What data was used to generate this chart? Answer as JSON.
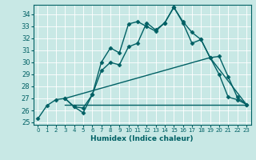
{
  "xlabel": "Humidex (Indice chaleur)",
  "bg_color": "#c8e8e5",
  "grid_color": "#ffffff",
  "line_color": "#006064",
  "xlim": [
    -0.5,
    23.5
  ],
  "ylim": [
    24.8,
    34.8
  ],
  "yticks": [
    25,
    26,
    27,
    28,
    29,
    30,
    31,
    32,
    33,
    34
  ],
  "xticks": [
    0,
    1,
    2,
    3,
    4,
    5,
    6,
    7,
    8,
    9,
    10,
    11,
    12,
    13,
    14,
    15,
    16,
    17,
    18,
    19,
    20,
    21,
    22,
    23
  ],
  "series": [
    {
      "x": [
        0,
        1,
        2,
        3,
        4,
        5,
        6,
        7,
        8,
        9,
        10,
        11,
        12,
        13,
        14,
        15,
        16,
        17,
        18,
        19,
        20,
        21,
        22,
        23
      ],
      "y": [
        25.3,
        26.4,
        26.9,
        27.0,
        26.3,
        25.8,
        27.3,
        30.0,
        31.2,
        30.8,
        33.2,
        33.4,
        33.0,
        32.6,
        33.3,
        34.6,
        33.4,
        32.5,
        31.9,
        30.4,
        29.0,
        27.1,
        26.9,
        26.5
      ],
      "marker": "D",
      "markersize": 2.5,
      "linewidth": 1.0,
      "has_marker": true
    },
    {
      "x": [
        3,
        4,
        5,
        6,
        7,
        8,
        9,
        10,
        11,
        12,
        13,
        14,
        15,
        16,
        17,
        18,
        19,
        20,
        21,
        22,
        23
      ],
      "y": [
        27.0,
        26.3,
        26.2,
        27.3,
        29.3,
        30.0,
        29.8,
        31.3,
        31.6,
        33.3,
        32.7,
        33.3,
        34.6,
        33.3,
        31.6,
        31.9,
        30.4,
        30.5,
        28.8,
        27.1,
        26.5
      ],
      "marker": "D",
      "markersize": 2.5,
      "linewidth": 1.0,
      "has_marker": true
    },
    {
      "x": [
        3,
        10,
        22,
        23
      ],
      "y": [
        26.5,
        26.5,
        26.5,
        26.5
      ],
      "marker": "D",
      "markersize": 2.0,
      "linewidth": 1.0,
      "has_marker": false
    },
    {
      "x": [
        3,
        19,
        23
      ],
      "y": [
        27.0,
        30.4,
        26.5
      ],
      "marker": null,
      "markersize": 0,
      "linewidth": 1.0,
      "has_marker": false
    }
  ]
}
